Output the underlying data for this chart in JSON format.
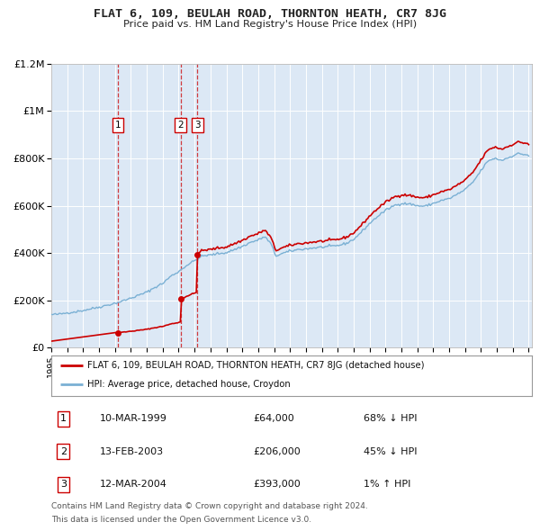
{
  "title": "FLAT 6, 109, BEULAH ROAD, THORNTON HEATH, CR7 8JG",
  "subtitle": "Price paid vs. HM Land Registry's House Price Index (HPI)",
  "sales": [
    {
      "label": "1",
      "date_str": "10-MAR-1999",
      "year": 1999.19,
      "price": 64000,
      "hpi_pct": "68% ↓ HPI"
    },
    {
      "label": "2",
      "date_str": "13-FEB-2003",
      "year": 2003.12,
      "price": 206000,
      "hpi_pct": "45% ↓ HPI"
    },
    {
      "label": "3",
      "date_str": "12-MAR-2004",
      "year": 2004.19,
      "price": 393000,
      "hpi_pct": "1% ↑ HPI"
    }
  ],
  "legend_property": "FLAT 6, 109, BEULAH ROAD, THORNTON HEATH, CR7 8JG (detached house)",
  "legend_hpi": "HPI: Average price, detached house, Croydon",
  "footer1": "Contains HM Land Registry data © Crown copyright and database right 2024.",
  "footer2": "This data is licensed under the Open Government Licence v3.0.",
  "ylim": [
    0,
    1200000
  ],
  "yticks": [
    0,
    200000,
    400000,
    600000,
    800000,
    1000000,
    1200000
  ],
  "ytick_labels": [
    "£0",
    "£200K",
    "£400K",
    "£600K",
    "£800K",
    "£1M",
    "£1.2M"
  ],
  "bg_color": "#ffffff",
  "plot_bg": "#dce8f5",
  "red_color": "#cc0000",
  "blue_color": "#7ab0d4",
  "grid_color": "#ffffff",
  "label_box_color": "#cc0000"
}
